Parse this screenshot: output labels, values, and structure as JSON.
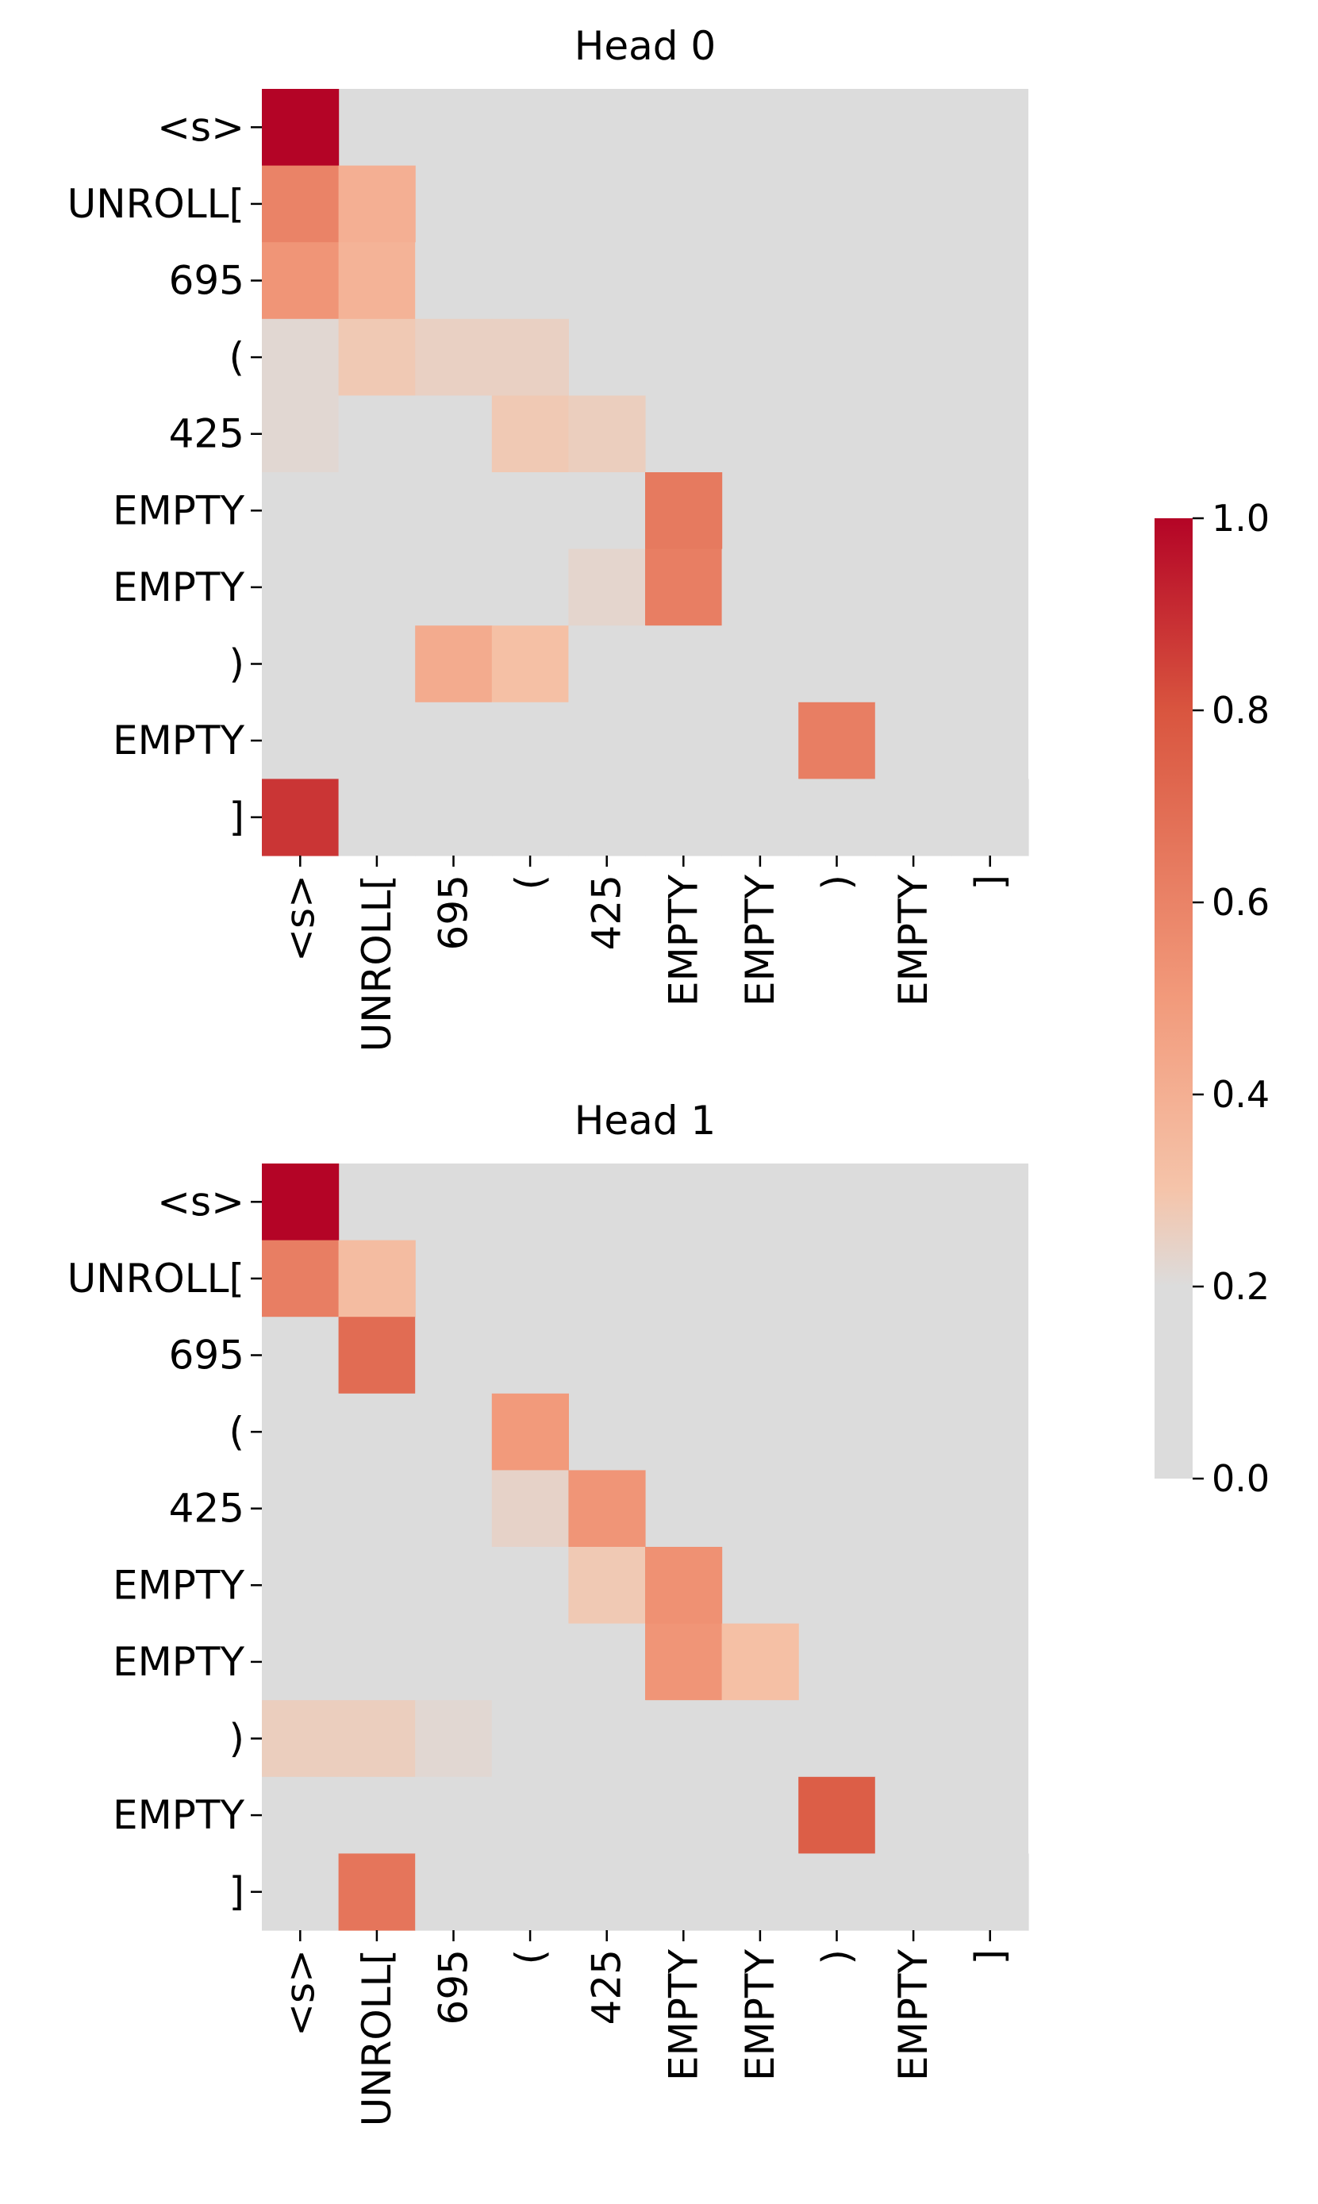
{
  "colors": {
    "zero": "#dcdcdc",
    "mid_light": "#f5c4aa",
    "mid": "#f29a7b",
    "high": "#d9553f",
    "max": "#b40426"
  },
  "chart_data": [
    {
      "type": "heatmap",
      "title": "Head 0",
      "x_labels": [
        "<s>",
        "UNROLL[",
        "695",
        "(",
        "425",
        "EMPTY",
        "EMPTY",
        ")",
        "EMPTY",
        "]"
      ],
      "y_labels": [
        "<s>",
        "UNROLL[",
        "695",
        "(",
        "425",
        "EMPTY",
        "EMPTY",
        ")",
        "EMPTY",
        "]"
      ],
      "masked": "upper-triangle",
      "values": [
        [
          1.0,
          null,
          null,
          null,
          null,
          null,
          null,
          null,
          null,
          null
        ],
        [
          0.6,
          0.4,
          null,
          null,
          null,
          null,
          null,
          null,
          null,
          null
        ],
        [
          0.52,
          0.38,
          0.1,
          null,
          null,
          null,
          null,
          null,
          null,
          null
        ],
        [
          0.22,
          0.28,
          0.25,
          0.25,
          null,
          null,
          null,
          null,
          null,
          null
        ],
        [
          0.22,
          0.12,
          0.12,
          0.28,
          0.26,
          null,
          null,
          null,
          null,
          null
        ],
        [
          0.1,
          0.03,
          0.06,
          0.04,
          0.13,
          0.64,
          null,
          null,
          null,
          null
        ],
        [
          0.03,
          0.02,
          0.03,
          0.04,
          0.23,
          0.62,
          0.11,
          null,
          null,
          null
        ],
        [
          0.05,
          0.09,
          0.42,
          0.32,
          0.03,
          0.03,
          0.05,
          0.04,
          null,
          null
        ],
        [
          0.03,
          0.05,
          0.03,
          0.07,
          0.09,
          0.13,
          0.04,
          0.62,
          0.02,
          null
        ],
        [
          0.88,
          0.03,
          0.03,
          0.02,
          0.02,
          0.02,
          0.02,
          0.04,
          0.02,
          0.05
        ]
      ]
    },
    {
      "type": "heatmap",
      "title": "Head 1",
      "x_labels": [
        "<s>",
        "UNROLL[",
        "695",
        "(",
        "425",
        "EMPTY",
        "EMPTY",
        ")",
        "EMPTY",
        "]"
      ],
      "y_labels": [
        "<s>",
        "UNROLL[",
        "695",
        "(",
        "425",
        "EMPTY",
        "EMPTY",
        ")",
        "EMPTY",
        "]"
      ],
      "masked": "upper-triangle",
      "values": [
        [
          1.0,
          null,
          null,
          null,
          null,
          null,
          null,
          null,
          null,
          null
        ],
        [
          0.62,
          0.34,
          null,
          null,
          null,
          null,
          null,
          null,
          null,
          null
        ],
        [
          0.14,
          0.7,
          0.2,
          null,
          null,
          null,
          null,
          null,
          null,
          null
        ],
        [
          0.15,
          0.18,
          0.15,
          0.5,
          null,
          null,
          null,
          null,
          null,
          null
        ],
        [
          0.07,
          0.2,
          0.07,
          0.24,
          0.52,
          null,
          null,
          null,
          null,
          null
        ],
        [
          0.05,
          0.07,
          0.07,
          0.07,
          0.28,
          0.54,
          null,
          null,
          null,
          null
        ],
        [
          0.06,
          0.05,
          0.03,
          0.03,
          0.12,
          0.52,
          0.32,
          null,
          null,
          null
        ],
        [
          0.26,
          0.26,
          0.22,
          0.15,
          0.03,
          0.04,
          0.04,
          0.04,
          null,
          null
        ],
        [
          0.08,
          0.03,
          0.04,
          0.04,
          0.05,
          0.08,
          0.04,
          0.76,
          0.05,
          null
        ],
        [
          0.05,
          0.66,
          0.05,
          0.05,
          0.03,
          0.03,
          0.07,
          0.02,
          0.09,
          0.17
        ]
      ]
    }
  ],
  "colorbar": {
    "ticks": [
      "0.0",
      "0.2",
      "0.4",
      "0.6",
      "0.8",
      "1.0"
    ],
    "tick_values": [
      0,
      0.2,
      0.4,
      0.6,
      0.8,
      1.0
    ],
    "range": [
      0,
      1
    ]
  }
}
